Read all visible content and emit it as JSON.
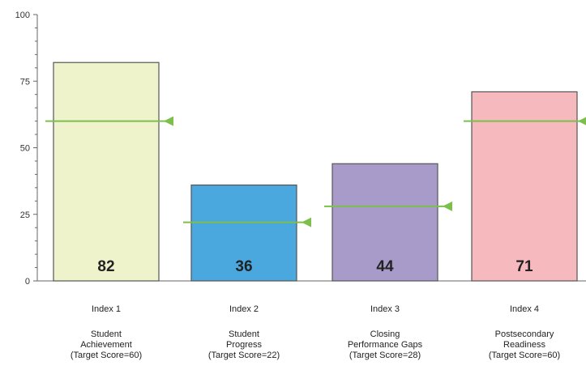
{
  "chart_data": {
    "type": "bar",
    "title": "",
    "xlabel": "",
    "ylabel": "",
    "ylim": [
      0,
      100
    ],
    "yticks": [
      0,
      25,
      50,
      75,
      100
    ],
    "grid": false,
    "categories": [
      {
        "index": "Index 1",
        "name_lines": [
          "Student",
          "Achievement"
        ],
        "target_text": "(Target Score=60)"
      },
      {
        "index": "Index 2",
        "name_lines": [
          "Student",
          "Progress"
        ],
        "target_text": "(Target Score=22)"
      },
      {
        "index": "Index 3",
        "name_lines": [
          "Closing",
          "Performance Gaps"
        ],
        "target_text": "(Target Score=28)"
      },
      {
        "index": "Index 4",
        "name_lines": [
          "Postsecondary",
          "Readiness"
        ],
        "target_text": "(Target Score=60)"
      }
    ],
    "values": [
      82,
      36,
      44,
      71
    ],
    "targets": [
      60,
      22,
      28,
      60
    ],
    "bar_colors": [
      "#eef3cc",
      "#4aa8de",
      "#a99bc9",
      "#f6b9bd"
    ],
    "target_marker_color": "#7dbf4c"
  }
}
